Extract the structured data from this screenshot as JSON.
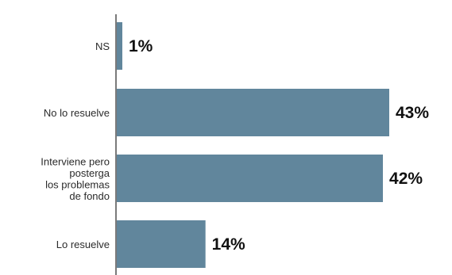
{
  "chart_data": {
    "type": "bar",
    "orientation": "horizontal",
    "categories": [
      [
        "NS"
      ],
      [
        "No lo resuelve"
      ],
      [
        "Interviene pero",
        "posterga",
        "los problemas",
        "de fondo"
      ],
      [
        "Lo resuelve"
      ]
    ],
    "values": [
      1,
      43,
      42,
      14
    ],
    "value_labels": [
      "1%",
      "43%",
      "42%",
      "14%"
    ],
    "unit": "%",
    "xlim": [
      0,
      43
    ],
    "grid": false,
    "legend": "none",
    "bar_color": "#61869c",
    "axis_color": "#333333"
  }
}
